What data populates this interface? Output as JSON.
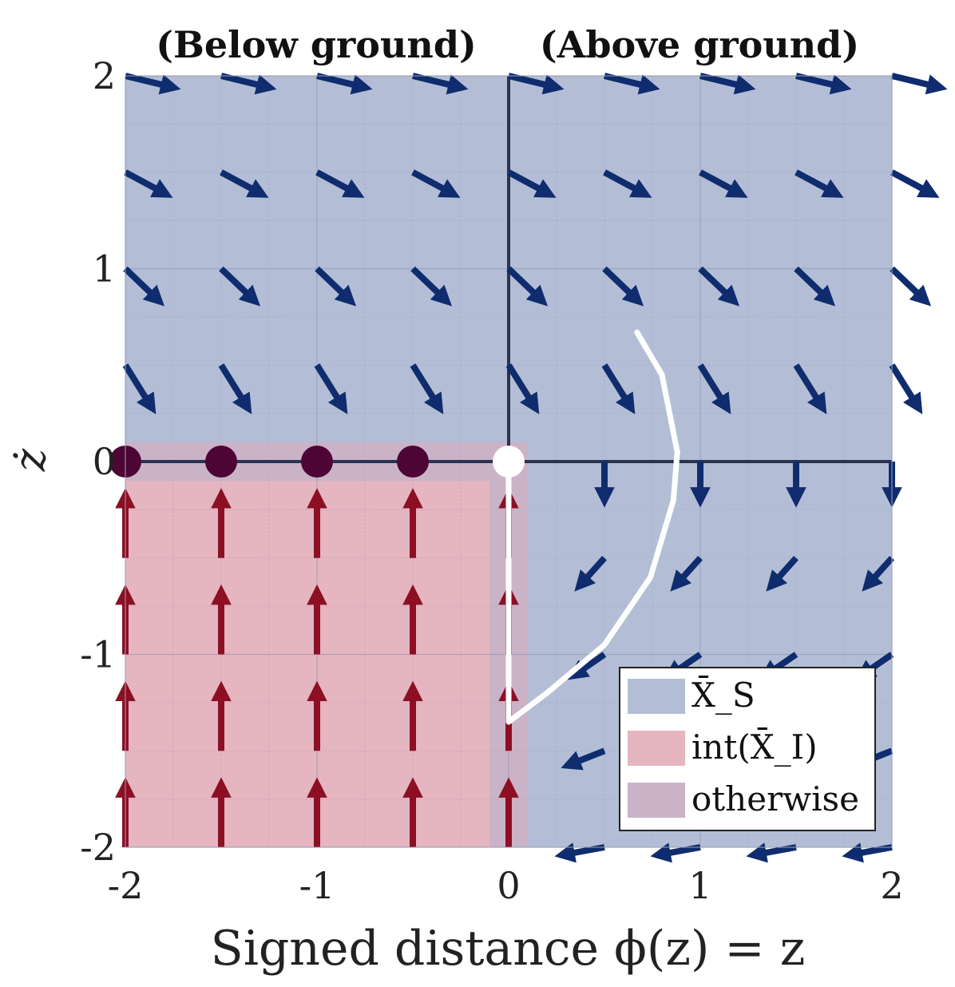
{
  "chart_data": {
    "type": "quiver",
    "region_labels": {
      "left": "(Below ground)",
      "right": "(Above ground)"
    },
    "xlabel": "Signed distance ϕ(z) = z",
    "ylabel": "ż",
    "xlim": [
      -2,
      2
    ],
    "ylim": [
      -2,
      2
    ],
    "x_ticks": [
      "-2",
      "-1",
      "0",
      "1",
      "2"
    ],
    "y_ticks": [
      "-2",
      "-1",
      "0",
      "1",
      "2"
    ],
    "grid": true,
    "legend": {
      "placement": "bottom-right",
      "entries": [
        {
          "label": "X̄_S",
          "color": "#b3bed6"
        },
        {
          "label": "int(X̄_I)",
          "color": "#e5b5c0"
        },
        {
          "label": "otherwise",
          "color": "#cbb3c7"
        }
      ]
    },
    "regions": {
      "safe_color": "#b3bed6",
      "interior_unsafe_color": "#e5b5c0",
      "boundary_color": "#cbb3c7",
      "interior_unsafe": {
        "x": [
          -2,
          -0.1
        ],
        "y": [
          -2,
          -0.1
        ]
      },
      "otherwise_band": {
        "x": [
          -2,
          0.1
        ],
        "y": [
          -2,
          0.1
        ]
      }
    },
    "vector_field": {
      "x": [
        -2,
        -1.5,
        -1,
        -0.5,
        0,
        0.5,
        1,
        1.5,
        2
      ],
      "y": [
        -2,
        -1.5,
        -1,
        -0.5,
        0,
        0.5,
        1,
        1.5,
        2
      ],
      "safe_color": "#0f2c6e",
      "unsafe_color": "#8c0f24"
    },
    "equilibria": [
      {
        "x": -2,
        "y": 0,
        "color": "#4d0535"
      },
      {
        "x": -1.5,
        "y": 0,
        "color": "#4d0535"
      },
      {
        "x": -1,
        "y": 0,
        "color": "#4d0535"
      },
      {
        "x": -0.5,
        "y": 0,
        "color": "#4d0535"
      },
      {
        "x": 0,
        "y": 0,
        "color": "#ffffff"
      }
    ],
    "trajectory": {
      "color": "#ffffff",
      "points": [
        [
          0.67,
          0.67
        ],
        [
          0.8,
          0.45
        ],
        [
          0.88,
          0.05
        ],
        [
          0.86,
          -0.2
        ],
        [
          0.74,
          -0.6
        ],
        [
          0.5,
          -0.95
        ],
        [
          0.2,
          -1.2
        ],
        [
          0,
          -1.35
        ],
        [
          0,
          0
        ]
      ]
    },
    "axis_color": "#2a3350"
  }
}
